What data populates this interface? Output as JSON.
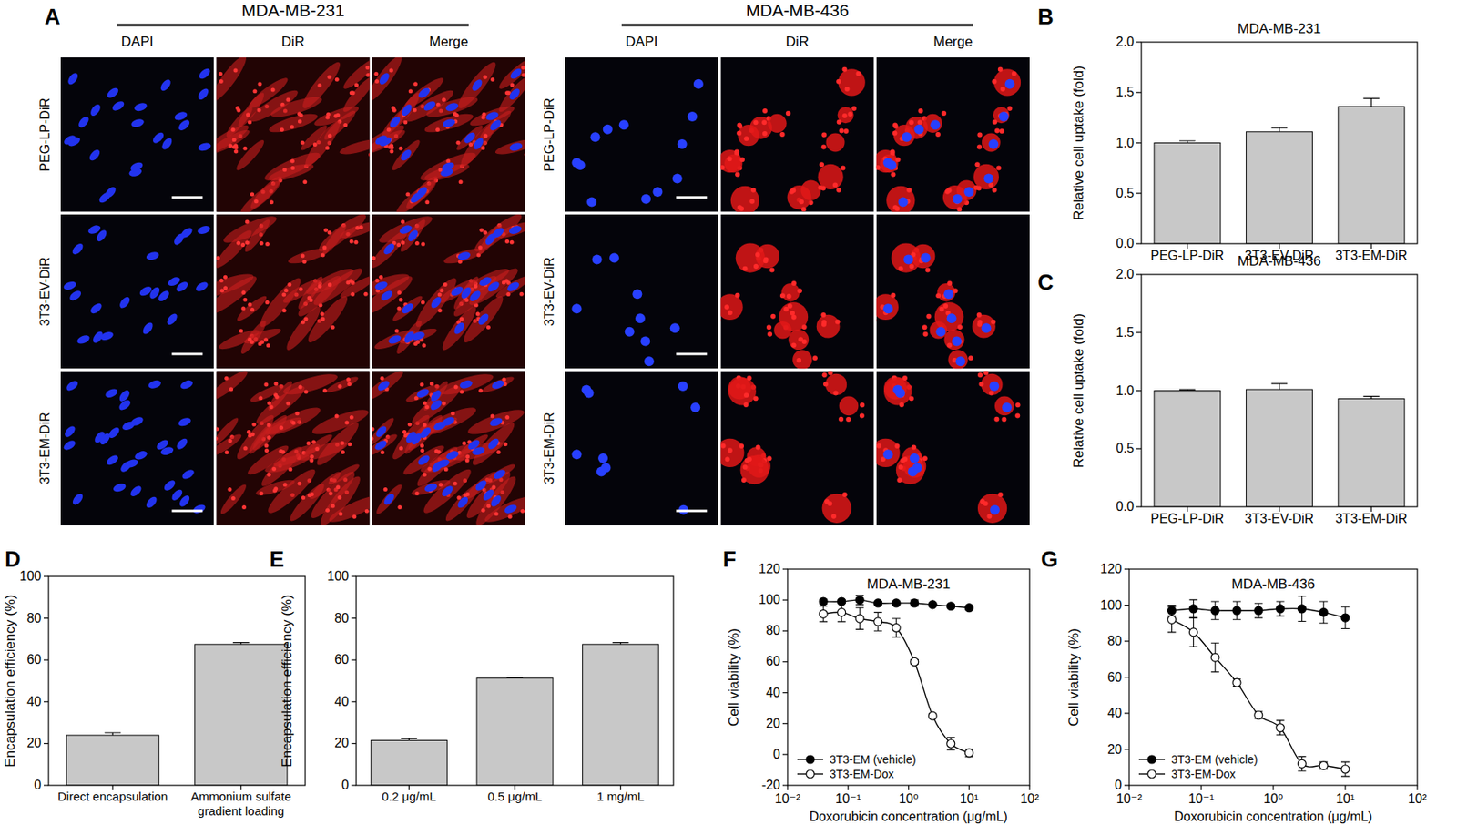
{
  "micrographs": {
    "panel_label": "A",
    "groups": [
      {
        "cell_line": "MDA-MB-231",
        "columns": [
          "DAPI",
          "DiR",
          "Merge"
        ],
        "rows": [
          "PEG-LP-DiR",
          "3T3-EV-DiR",
          "3T3-EM-DiR"
        ]
      },
      {
        "cell_line": "MDA-MB-436",
        "columns": [
          "DAPI",
          "DiR",
          "Merge"
        ],
        "rows": [
          "PEG-LP-DiR",
          "3T3-EV-DiR",
          "3T3-EM-DiR"
        ]
      }
    ]
  },
  "chart_data": [
    {
      "type": "bar",
      "panel_label": "B",
      "title": "MDA-MB-231",
      "y_label": "Relative cell uptake (fold)",
      "categories": [
        "PEG-LP-DiR",
        "3T3-EV-DiR",
        "3T3-EM-DiR"
      ],
      "values": [
        1.0,
        1.11,
        1.36
      ],
      "errors": [
        0.02,
        0.04,
        0.08
      ],
      "color": "#c8c8c8",
      "ylim": [
        0,
        2
      ],
      "yticks": [
        {
          "value": 0,
          "label": "0.0"
        },
        0.5,
        {
          "value": 1,
          "label": "1.0"
        },
        1.5,
        {
          "value": 2,
          "label": "2.0"
        }
      ],
      "grid": false
    },
    {
      "type": "bar",
      "panel_label": "C",
      "title": "MDA-MB-436",
      "y_label": "Relative cell uptake (fold)",
      "categories": [
        "PEG-LP-DiR",
        "3T3-EV-DiR",
        "3T3-EM-DiR"
      ],
      "values": [
        1.0,
        1.01,
        0.93
      ],
      "errors": [
        0.01,
        0.05,
        0.02
      ],
      "color": "#c8c8c8",
      "ylim": [
        0,
        2
      ],
      "yticks": [
        {
          "value": 0,
          "label": "0.0"
        },
        0.5,
        {
          "value": 1,
          "label": "1.0"
        },
        1.5,
        {
          "value": 2,
          "label": "2.0"
        }
      ],
      "grid": false
    },
    {
      "type": "bar",
      "panel_label": "D",
      "y_label": "Encapsulation efficiency (%)",
      "categories": [
        "Direct encapsulation",
        "Ammonium sulfate gradient loading"
      ],
      "values": [
        24,
        67.5
      ],
      "errors": [
        1.2,
        0.9
      ],
      "color": "#c8c8c8",
      "ylim": [
        0,
        100
      ],
      "yticks": [
        0,
        20,
        40,
        60,
        80,
        100
      ],
      "grid": false
    },
    {
      "type": "bar",
      "panel_label": "E",
      "y_label": "Encapsulation efficiency (%)",
      "categories": [
        "0.2 μg/mL",
        "0.5 μg/mL",
        "1 mg/mL"
      ],
      "values": [
        21.5,
        51.3,
        67.5
      ],
      "errors": [
        0.8,
        0.4,
        0.9
      ],
      "color": "#c8c8c8",
      "ylim": [
        0,
        100
      ],
      "yticks": [
        0,
        20,
        40,
        60,
        80,
        100
      ],
      "grid": false
    },
    {
      "type": "line",
      "panel_label": "F",
      "title": "MDA-MB-231",
      "x_label": "Doxorubicin concentration (μg/mL)",
      "y_label": "Cell viability (%)",
      "log": "x",
      "grid": false,
      "legend": "lower left",
      "x": [
        0.039,
        0.078,
        0.156,
        0.3125,
        0.625,
        1.25,
        2.5,
        5,
        10
      ],
      "xlim": [
        0.01,
        100
      ],
      "xticks": [
        {
          "value": 0.01,
          "label": "10⁻²"
        },
        {
          "value": 0.1,
          "label": "10⁻¹"
        },
        {
          "value": 1,
          "label": "10⁰"
        },
        {
          "value": 10,
          "label": "10¹"
        },
        {
          "value": 100,
          "label": "10²"
        }
      ],
      "ylim": [
        -20,
        120
      ],
      "yticks": [
        -20,
        0,
        20,
        40,
        60,
        80,
        100,
        120
      ],
      "series": [
        {
          "name": "3T3-EM (vehicle)",
          "color": "#000000",
          "marker": "filled-circle",
          "line_style": "solid",
          "values": [
            99,
            99,
            100,
            98,
            98,
            98,
            97,
            96,
            95
          ],
          "errors": [
            1.5,
            1,
            3,
            1,
            1,
            2,
            1,
            1,
            1
          ]
        },
        {
          "name": "3T3-EM-Dox",
          "color": "#000000",
          "marker": "open-circle",
          "line_style": "solid",
          "values": [
            91,
            92,
            88,
            86,
            82,
            60,
            25,
            7,
            1
          ],
          "errors": [
            5,
            6,
            7,
            6,
            6,
            1.5,
            1.5,
            4,
            2.5
          ]
        }
      ]
    },
    {
      "type": "line",
      "panel_label": "G",
      "title": "MDA-MB-436",
      "x_label": "Doxorubicin concentration (μg/mL)",
      "y_label": "Cell viability (%)",
      "log": "x",
      "grid": false,
      "legend": "lower left",
      "x": [
        0.039,
        0.078,
        0.156,
        0.3125,
        0.625,
        1.25,
        2.5,
        5,
        10
      ],
      "xlim": [
        0.01,
        100
      ],
      "xticks": [
        {
          "value": 0.01,
          "label": "10⁻²"
        },
        {
          "value": 0.1,
          "label": "10⁻¹"
        },
        {
          "value": 1,
          "label": "10⁰"
        },
        {
          "value": 10,
          "label": "10¹"
        },
        {
          "value": 100,
          "label": "10²"
        }
      ],
      "ylim": [
        0,
        120
      ],
      "yticks": [
        0,
        20,
        40,
        60,
        80,
        100,
        120
      ],
      "series": [
        {
          "name": "3T3-EM (vehicle)",
          "color": "#000000",
          "marker": "filled-circle",
          "line_style": "solid",
          "values": [
            97,
            98,
            97,
            97,
            97,
            98,
            98,
            96,
            93
          ],
          "errors": [
            3,
            5,
            5,
            5,
            4,
            4,
            7,
            6,
            6
          ]
        },
        {
          "name": "3T3-EM-Dox",
          "color": "#000000",
          "marker": "open-circle",
          "line_style": "solid",
          "values": [
            92,
            85,
            71,
            57,
            39,
            32,
            12,
            11,
            9
          ],
          "errors": [
            7,
            8,
            8,
            2,
            2,
            4,
            4,
            2,
            4
          ]
        }
      ]
    }
  ]
}
